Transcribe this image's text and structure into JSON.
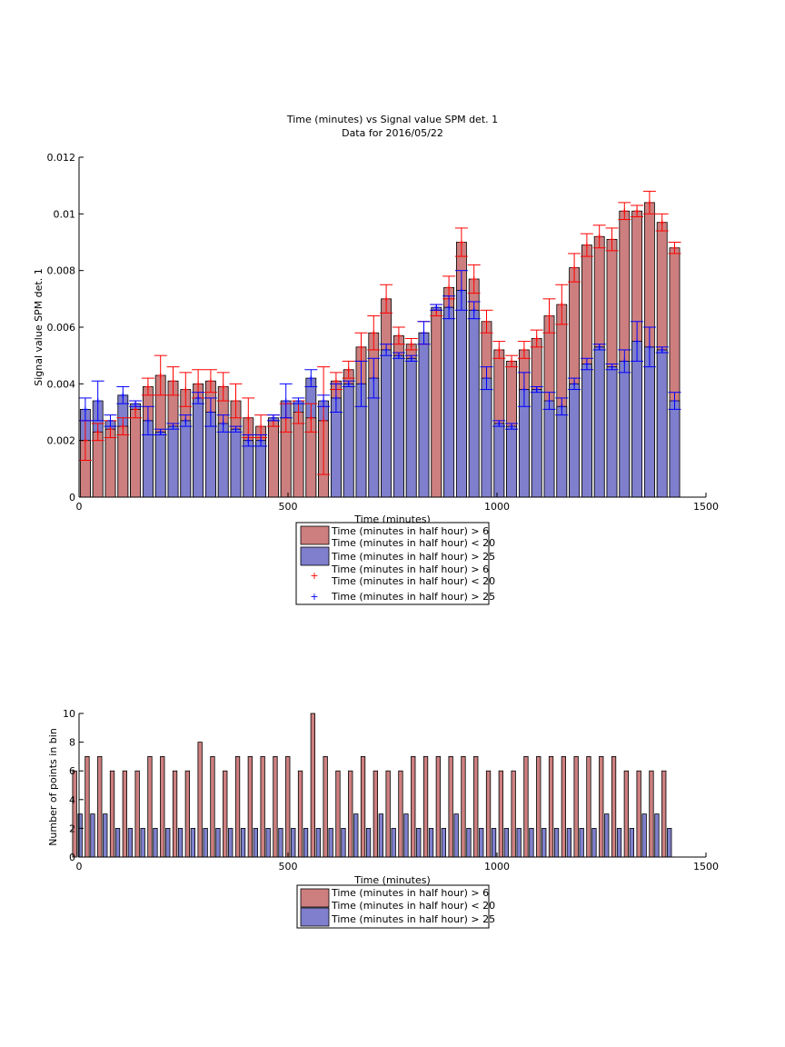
{
  "colors": {
    "red_face": "#cd7f7f",
    "blue_face": "#7f7fcd",
    "red_err": "#ff0000",
    "blue_err": "#0000ff",
    "axis": "#000000"
  },
  "chart_data": [
    {
      "type": "bar",
      "title": "Time (minutes) vs Signal value SPM det. 1",
      "subtitle": "Data for 2016/05/22",
      "xlabel": "Time (minutes)",
      "ylabel": "Signal value SPM det. 1",
      "xlim": [
        0,
        1500
      ],
      "ylim": [
        0,
        0.012
      ],
      "xticks": [
        0,
        500,
        1000,
        1500
      ],
      "yticks": [
        0,
        0.002,
        0.004,
        0.006,
        0.008,
        0.01,
        0.012
      ],
      "ytick_labels": [
        "0",
        "0.002",
        "0.004",
        "0.006",
        "0.008",
        "0.01",
        "0.012"
      ],
      "x": [
        15,
        45,
        75,
        105,
        135,
        165,
        195,
        225,
        255,
        285,
        315,
        345,
        375,
        405,
        435,
        465,
        495,
        525,
        555,
        585,
        615,
        645,
        675,
        705,
        735,
        765,
        795,
        825,
        855,
        885,
        915,
        945,
        975,
        1005,
        1035,
        1065,
        1095,
        1125,
        1155,
        1185,
        1215,
        1245,
        1275,
        1305,
        1335,
        1365,
        1395,
        1425
      ],
      "legend": [
        "Time (minutes in half hour) > 6\nTime (minutes in half hour) < 20",
        "Time (minutes in half hour) > 25",
        "Time (minutes in half hour) > 6\nTime (minutes in half hour) < 20",
        "Time (minutes in half hour) > 25"
      ],
      "series": [
        {
          "name": "Time (minutes in half hour) > 6 Time (minutes in half hour) < 20",
          "values": [
            0.002,
            0.0023,
            0.0024,
            0.0025,
            0.0031,
            0.0039,
            0.0043,
            0.0041,
            0.0038,
            0.004,
            0.0041,
            0.0039,
            0.0034,
            0.0028,
            0.0025,
            0.0027,
            0.0028,
            0.003,
            0.0028,
            0.0027,
            0.0041,
            0.0045,
            0.0053,
            0.0058,
            0.007,
            0.0057,
            0.0054,
            0.0058,
            0.0066,
            0.0074,
            0.009,
            0.0077,
            0.0062,
            0.0052,
            0.0048,
            0.0052,
            0.0056,
            0.0064,
            0.0068,
            0.0081,
            0.0089,
            0.0092,
            0.0091,
            0.0101,
            0.0101,
            0.0104,
            0.0097,
            0.0088
          ],
          "errors": [
            0.0007,
            0.0003,
            0.0003,
            0.0003,
            0.0003,
            0.0003,
            0.0007,
            0.0005,
            0.0006,
            0.0005,
            0.0004,
            0.0005,
            0.0006,
            0.0007,
            0.0004,
            0.0002,
            0.0005,
            0.0004,
            0.0005,
            0.0019,
            0.0003,
            0.0003,
            0.0005,
            0.0006,
            0.0005,
            0.0003,
            0.0002,
            0.0004,
            0.0002,
            0.0004,
            0.0005,
            0.0005,
            0.0004,
            0.0003,
            0.0002,
            0.0003,
            0.0003,
            0.0006,
            0.0007,
            0.0005,
            0.0004,
            0.0004,
            0.0004,
            0.0003,
            0.0002,
            0.0004,
            0.0003,
            0.0002
          ]
        },
        {
          "name": "Time (minutes in half hour) > 25",
          "values": [
            0.0031,
            0.0034,
            0.0027,
            0.0036,
            0.0033,
            0.0027,
            0.0023,
            0.0025,
            0.0027,
            0.0035,
            0.003,
            0.0026,
            0.0024,
            0.002,
            0.002,
            0.0028,
            0.0034,
            0.0034,
            0.0042,
            0.0034,
            0.0035,
            0.004,
            0.004,
            0.0042,
            0.0052,
            0.005,
            0.0049,
            0.0058,
            0.0067,
            0.0067,
            0.0073,
            0.0066,
            0.0042,
            0.0026,
            0.0025,
            0.0038,
            0.0038,
            0.0034,
            0.0032,
            0.004,
            0.0047,
            0.0053,
            0.0046,
            0.0048,
            0.0055,
            0.0053,
            0.0052,
            0.0034
          ],
          "errors": [
            0.0004,
            0.0007,
            0.0002,
            0.0003,
            0.0001,
            0.0005,
            0.0001,
            0.0001,
            0.0002,
            0.0002,
            0.0005,
            0.0003,
            0.0001,
            0.0002,
            0.0002,
            0.0001,
            0.0006,
            0.0001,
            0.0003,
            0.0002,
            0.0005,
            0.0001,
            0.0008,
            0.0007,
            0.0002,
            0.0001,
            0.0001,
            0.0004,
            0.0001,
            0.0004,
            0.0007,
            0.0003,
            0.0004,
            0.0001,
            0.0001,
            0.0006,
            0.0001,
            0.0003,
            0.0003,
            0.0002,
            0.0002,
            0.0001,
            0.0001,
            0.0004,
            0.0007,
            0.0007,
            0.0001,
            0.0003
          ]
        }
      ]
    },
    {
      "type": "bar",
      "title": "",
      "xlabel": "Time (minutes)",
      "ylabel": "Number of points in bin",
      "xlim": [
        0,
        1500
      ],
      "ylim": [
        0,
        10
      ],
      "xticks": [
        0,
        500,
        1000,
        1500
      ],
      "yticks": [
        0,
        2,
        4,
        6,
        8,
        10
      ],
      "ytick_labels": [
        "0",
        "2",
        "4",
        "6",
        "8",
        "10"
      ],
      "x": [
        15,
        45,
        75,
        105,
        135,
        165,
        195,
        225,
        255,
        285,
        315,
        345,
        375,
        405,
        435,
        465,
        495,
        525,
        555,
        585,
        615,
        645,
        675,
        705,
        735,
        765,
        795,
        825,
        855,
        885,
        915,
        945,
        975,
        1005,
        1035,
        1065,
        1095,
        1125,
        1155,
        1185,
        1215,
        1245,
        1275,
        1305,
        1335,
        1365,
        1395,
        1425
      ],
      "legend": [
        "Time (minutes in half hour) > 6\nTime (minutes in half hour) < 20",
        "Time (minutes in half hour) > 25"
      ],
      "series": [
        {
          "name": "Time (minutes in half hour) > 6 Time (minutes in half hour) < 20",
          "values": [
            6,
            7,
            7,
            6,
            6,
            6,
            7,
            7,
            6,
            6,
            8,
            7,
            6,
            7,
            7,
            7,
            7,
            7,
            6,
            10,
            7,
            6,
            6,
            7,
            6,
            6,
            6,
            7,
            7,
            7,
            7,
            7,
            7,
            6,
            6,
            6,
            7,
            7,
            7,
            7,
            7,
            7,
            7,
            7,
            6,
            6,
            6,
            6
          ]
        },
        {
          "name": "Time (minutes in half hour) > 25",
          "values": [
            3,
            3,
            3,
            2,
            2,
            2,
            2,
            2,
            2,
            2,
            2,
            2,
            2,
            2,
            2,
            2,
            2,
            2,
            2,
            2,
            2,
            2,
            3,
            2,
            3,
            2,
            3,
            2,
            2,
            2,
            3,
            2,
            2,
            2,
            2,
            2,
            2,
            2,
            2,
            2,
            2,
            2,
            3,
            2,
            2,
            3,
            3,
            2
          ]
        }
      ]
    }
  ]
}
